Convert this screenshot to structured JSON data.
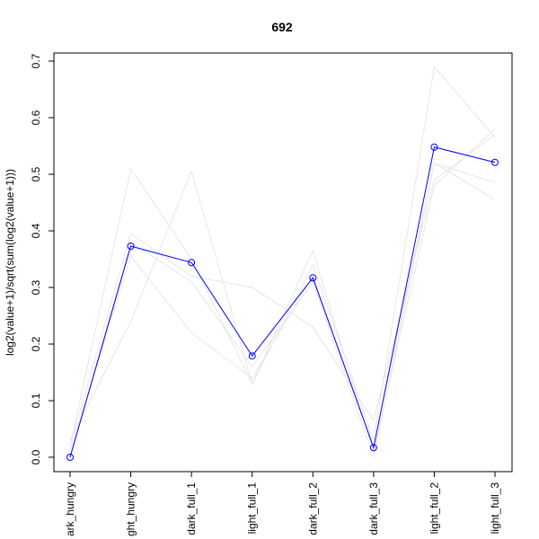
{
  "chart_data": {
    "type": "line",
    "title": "692",
    "xlabel": "",
    "ylabel": "log2(value+1)/sqrt(sum(log2(value+1)))",
    "ylim": [
      0,
      0.7
    ],
    "yticks": [
      "0.0",
      "0.1",
      "0.2",
      "0.3",
      "0.4",
      "0.5",
      "0.6",
      "0.7"
    ],
    "categories": [
      "dark_hungry",
      "light_hungry",
      "dark_full_1",
      "light_full_1",
      "dark_full_2",
      "dark_full_3",
      "light_full_2",
      "light_full_3"
    ],
    "tick_labels_visible": [
      "ark_hungry",
      "ght_hungry",
      "dark_full_1",
      "light_full_1",
      "dark_full_2",
      "dark_full_3",
      "light_full_2",
      "light_full_3"
    ],
    "highlight_color": "#0000ff",
    "background_color": "#e6e6e6",
    "series": [
      {
        "values": [
          0.0,
          0.373,
          0.344,
          0.179,
          0.317,
          0.017,
          0.548,
          0.521
        ],
        "highlight": true
      },
      {
        "values": [
          0.02,
          0.51,
          0.35,
          0.13,
          0.34,
          0.03,
          0.69,
          0.565
        ]
      },
      {
        "values": [
          0.03,
          0.24,
          0.505,
          0.13,
          0.365,
          0.01,
          0.48,
          0.58
        ]
      },
      {
        "values": [
          0.01,
          0.355,
          0.22,
          0.14,
          0.32,
          0.02,
          0.52,
          0.455
        ]
      },
      {
        "values": [
          0.02,
          0.395,
          0.32,
          0.3,
          0.23,
          0.065,
          0.49,
          0.57
        ]
      },
      {
        "values": [
          0.0,
          0.38,
          0.31,
          0.16,
          0.31,
          0.0,
          0.52,
          0.485
        ]
      }
    ]
  }
}
